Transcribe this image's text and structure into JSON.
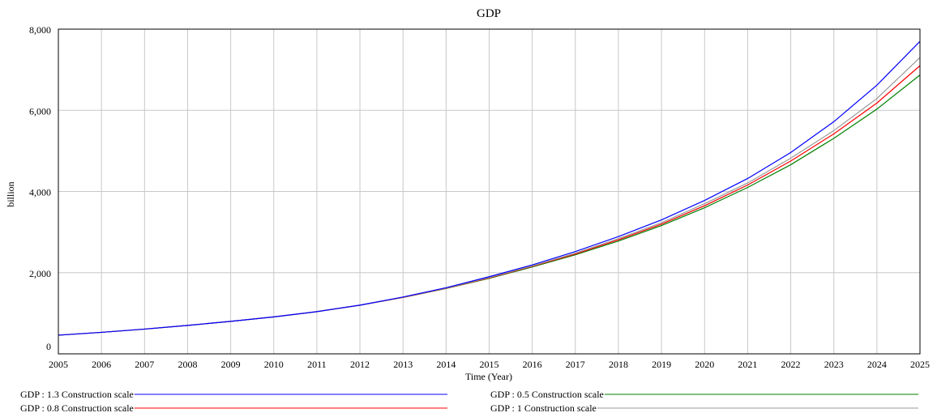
{
  "chart_data": {
    "type": "line",
    "title": "GDP",
    "xlabel": "Time (Year)",
    "ylabel": "billion",
    "x": [
      2005,
      2006,
      2007,
      2008,
      2009,
      2010,
      2011,
      2012,
      2013,
      2014,
      2015,
      2016,
      2017,
      2018,
      2019,
      2020,
      2021,
      2022,
      2023,
      2024,
      2025
    ],
    "xlim": [
      2005,
      2025
    ],
    "ylim": [
      0,
      8000
    ],
    "y_ticks": [
      0,
      2000,
      4000,
      6000,
      8000
    ],
    "y_tick_labels": [
      "0",
      "2,000",
      "4,000",
      "6,000",
      "8,000"
    ],
    "x_tick_labels": [
      "2005",
      "2006",
      "2007",
      "2008",
      "2009",
      "2010",
      "2011",
      "2012",
      "2013",
      "2014",
      "2015",
      "2016",
      "2017",
      "2018",
      "2019",
      "2020",
      "2021",
      "2022",
      "2023",
      "2024",
      "2025"
    ],
    "grid": true,
    "legend_position": "bottom",
    "series": [
      {
        "name": "GDP : 1.3 Construction scale",
        "color": "#0000ff",
        "values": [
          460,
          530,
          610,
          700,
          800,
          910,
          1040,
          1200,
          1400,
          1630,
          1900,
          2190,
          2520,
          2890,
          3300,
          3780,
          4320,
          4960,
          5720,
          6620,
          7700
        ]
      },
      {
        "name": "GDP : 0.5 Construction scale",
        "color": "#008000",
        "values": [
          460,
          530,
          610,
          700,
          800,
          910,
          1040,
          1200,
          1390,
          1610,
          1860,
          2140,
          2440,
          2780,
          3160,
          3600,
          4100,
          4660,
          5310,
          6030,
          6870
        ]
      },
      {
        "name": "GDP : 0.8 Construction scale",
        "color": "#ff0000",
        "values": [
          460,
          530,
          610,
          700,
          800,
          910,
          1040,
          1200,
          1390,
          1615,
          1870,
          2155,
          2460,
          2810,
          3195,
          3650,
          4160,
          4750,
          5420,
          6180,
          7100
        ]
      },
      {
        "name": "GDP : 1 Construction scale",
        "color": "#999999",
        "values": [
          460,
          530,
          610,
          700,
          800,
          910,
          1040,
          1200,
          1395,
          1620,
          1880,
          2165,
          2480,
          2840,
          3230,
          3700,
          4210,
          4820,
          5500,
          6290,
          7300
        ]
      }
    ]
  }
}
